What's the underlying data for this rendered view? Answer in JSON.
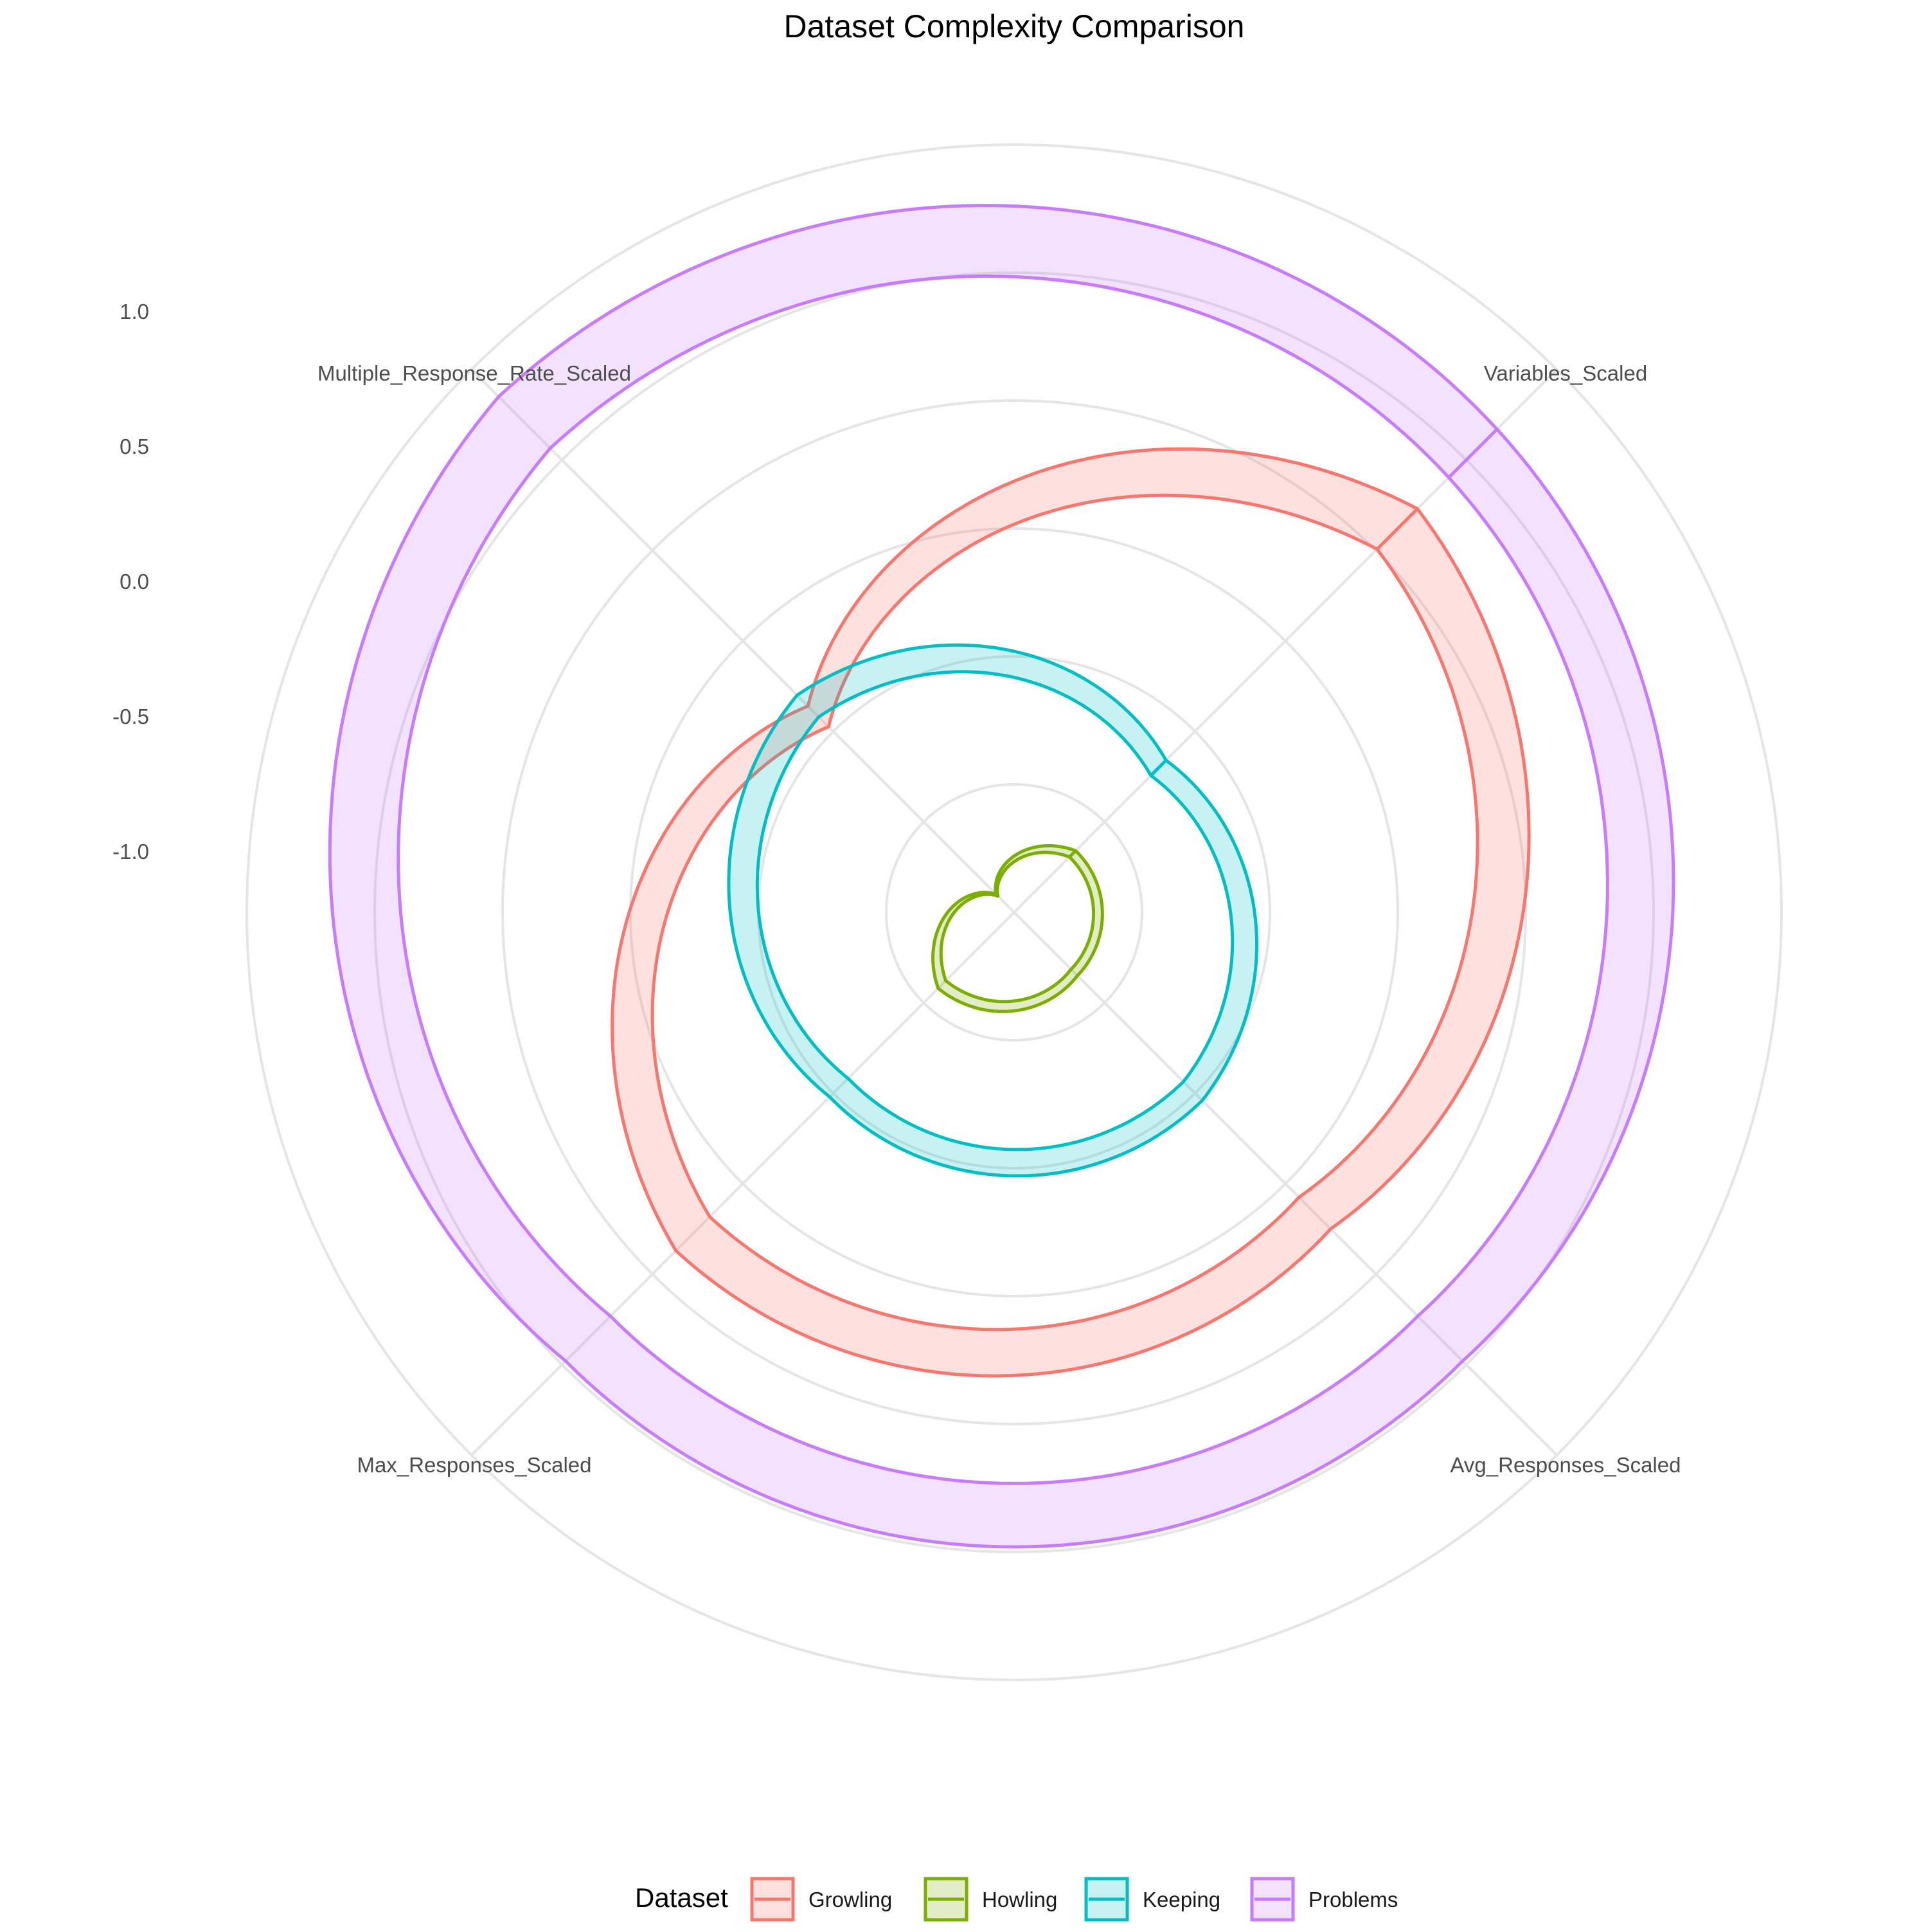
{
  "chart_data": {
    "type": "radar",
    "title": "Dataset Complexity Comparison",
    "axes": [
      "Variables_Scaled",
      "Avg_Responses_Scaled",
      "Max_Responses_Scaled",
      "Multiple_Response_Rate_Scaled"
    ],
    "radial_ticks": [
      "1.0",
      "0.5",
      "0.0",
      "-0.5",
      "-1.0"
    ],
    "radial_tick_values": [
      1.0,
      0.5,
      0.0,
      -0.5,
      -1.0
    ],
    "rlim": [
      -1.5,
      1.5
    ],
    "grid": true,
    "legend": {
      "title": "Dataset",
      "position": "bottom"
    },
    "series": [
      {
        "name": "Growling",
        "color": "#F8766D",
        "values": [
          0.73,
          0.25,
          0.37,
          -0.36
        ]
      },
      {
        "name": "Howling",
        "color": "#7CAE00",
        "values": [
          -1.16,
          -1.15,
          -1.08,
          -1.4
        ]
      },
      {
        "name": "Keeping",
        "color": "#00BFC4",
        "values": [
          -0.66,
          -0.46,
          -0.48,
          -0.3
        ]
      },
      {
        "name": "Problems",
        "color": "#C77CFF",
        "values": [
          1.17,
          0.98,
          0.98,
          1.35
        ]
      }
    ]
  }
}
